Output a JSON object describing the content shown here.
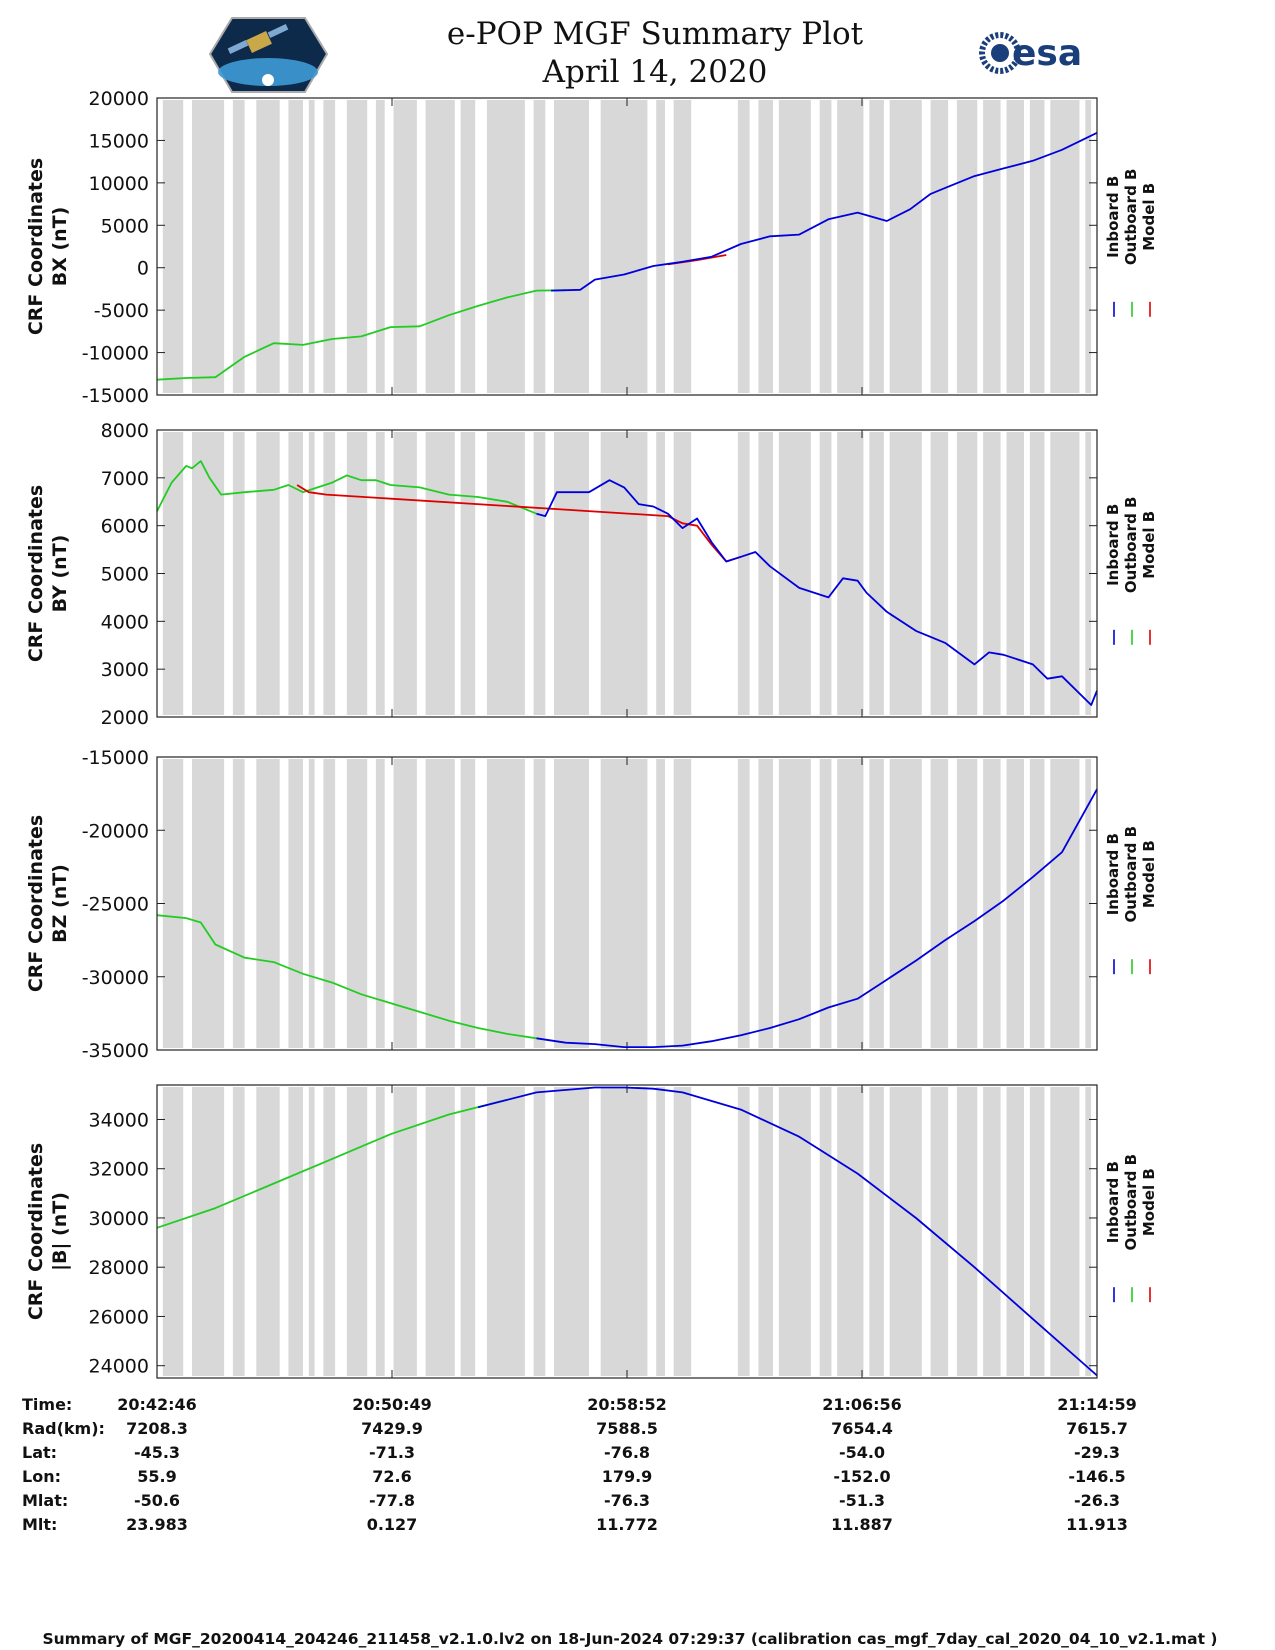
{
  "header": {
    "title": "e-POP MGF Summary Plot",
    "date": "April 14, 2020",
    "left_logo": "cassiope-satellite-logo",
    "right_logo": "esa-logo",
    "right_logo_text": "esa"
  },
  "colors": {
    "inboard": "#0000dd",
    "outboard": "#22cc22",
    "model": "#dd0000",
    "gap_shading": "#d8d8d8"
  },
  "legend": {
    "inboard": "Inboard B",
    "outboard": "Outboard B",
    "model": "Model B"
  },
  "chart_data": [
    {
      "type": "line",
      "ylabel_line1": "CRF Coordinates",
      "ylabel_line2": "BX (nT)",
      "ylim": [
        -15000,
        20000
      ],
      "yticks": [
        20000,
        15000,
        10000,
        5000,
        0,
        -5000,
        -10000,
        -15000
      ],
      "xlim_minutes": [
        0,
        32.2
      ],
      "series": [
        {
          "name": "Outboard B",
          "x": [
            0,
            1,
            2,
            3,
            4,
            5,
            6,
            7,
            8,
            9,
            10,
            11,
            12,
            13,
            14
          ],
          "values": [
            -13200,
            -13000,
            -12900,
            -10500,
            -8900,
            -9100,
            -8400,
            -8100,
            -7000,
            -6900,
            -5600,
            -4500,
            -3500,
            -2700,
            -2650
          ]
        },
        {
          "name": "Inboard B",
          "x": [
            13.5,
            14.5,
            15,
            16,
            17,
            18,
            19,
            20,
            21,
            22,
            23,
            24,
            25,
            25.8,
            26.5,
            27,
            28,
            29,
            30,
            31,
            32.2
          ],
          "values": [
            -2700,
            -2600,
            -1400,
            -800,
            200,
            700,
            1300,
            2800,
            3700,
            3900,
            5700,
            6500,
            5500,
            6900,
            8700,
            9400,
            10800,
            11700,
            12600,
            13900,
            15900
          ]
        },
        {
          "name": "Model B",
          "x": [
            17.5,
            18.5,
            19.5
          ],
          "values": [
            400,
            900,
            1500
          ]
        }
      ],
      "gaps_minutes": [
        [
          0.2,
          0.9
        ],
        [
          1.2,
          2.3
        ],
        [
          2.6,
          3.0
        ],
        [
          3.4,
          4.2
        ],
        [
          4.5,
          5.0
        ],
        [
          5.2,
          5.4
        ],
        [
          5.7,
          6.1
        ],
        [
          6.5,
          7.2
        ],
        [
          7.5,
          7.8
        ],
        [
          8.1,
          8.9
        ],
        [
          9.2,
          10.2
        ],
        [
          10.4,
          10.9
        ],
        [
          11.3,
          12.6
        ],
        [
          12.9,
          13.3
        ],
        [
          13.6,
          14.8
        ],
        [
          15.2,
          16.8
        ],
        [
          17.1,
          17.4
        ],
        [
          17.7,
          18.3
        ],
        [
          19.9,
          20.3
        ],
        [
          20.6,
          21.1
        ],
        [
          21.3,
          22.4
        ],
        [
          22.7,
          23.1
        ],
        [
          23.3,
          24.2
        ],
        [
          24.4,
          24.9
        ],
        [
          25.1,
          26.2
        ],
        [
          26.5,
          27.1
        ],
        [
          27.4,
          28.1
        ],
        [
          28.3,
          28.9
        ],
        [
          29.1,
          29.7
        ],
        [
          29.9,
          30.4
        ],
        [
          30.6,
          31.6
        ],
        [
          31.8,
          32.0
        ]
      ]
    },
    {
      "type": "line",
      "ylabel_line1": "CRF Coordinates",
      "ylabel_line2": "BY (nT)",
      "ylim": [
        2000,
        8000
      ],
      "yticks": [
        8000,
        7000,
        6000,
        5000,
        4000,
        3000,
        2000
      ],
      "xlim_minutes": [
        0,
        32.2
      ],
      "series": [
        {
          "name": "Outboard B",
          "x": [
            0,
            0.5,
            1,
            1.2,
            1.5,
            1.8,
            2.2,
            3,
            4,
            4.5,
            5,
            5.5,
            6,
            6.5,
            7,
            7.5,
            8,
            9,
            10,
            11,
            12,
            13
          ],
          "values": [
            6300,
            6900,
            7250,
            7200,
            7350,
            7000,
            6650,
            6700,
            6750,
            6850,
            6700,
            6800,
            6900,
            7050,
            6950,
            6950,
            6850,
            6800,
            6650,
            6600,
            6500,
            6250
          ]
        },
        {
          "name": "Inboard B",
          "x": [
            13,
            13.3,
            13.7,
            14.2,
            14.8,
            15.5,
            16,
            16.5,
            17,
            17.5,
            18,
            18.5,
            19,
            19.5,
            20,
            20.5,
            21,
            22,
            23,
            23.5,
            24,
            24.3,
            25,
            26,
            27,
            28,
            28.5,
            29,
            30,
            30.5,
            31,
            32,
            32.2
          ],
          "values": [
            6250,
            6200,
            6700,
            6700,
            6700,
            6950,
            6800,
            6450,
            6400,
            6250,
            5950,
            6150,
            5650,
            5250,
            5350,
            5450,
            5150,
            4700,
            4500,
            4900,
            4850,
            4600,
            4200,
            3800,
            3550,
            3100,
            3350,
            3300,
            3100,
            2800,
            2850,
            2250,
            2550
          ]
        },
        {
          "name": "Model B",
          "x": [
            4.8,
            5.2,
            5.8,
            17.5,
            18,
            18.5,
            19,
            19.5,
            20
          ],
          "values": [
            6850,
            6700,
            6650,
            6200,
            6050,
            6000,
            5600,
            5250,
            5350
          ]
        }
      ],
      "gaps_minutes": [
        [
          0.2,
          0.9
        ],
        [
          1.2,
          2.3
        ],
        [
          2.6,
          3.0
        ],
        [
          3.4,
          4.2
        ],
        [
          4.5,
          5.0
        ],
        [
          5.2,
          5.4
        ],
        [
          5.7,
          6.1
        ],
        [
          6.5,
          7.2
        ],
        [
          7.5,
          7.8
        ],
        [
          8.1,
          8.9
        ],
        [
          9.2,
          10.2
        ],
        [
          10.4,
          10.9
        ],
        [
          11.3,
          12.6
        ],
        [
          12.9,
          13.3
        ],
        [
          13.6,
          14.8
        ],
        [
          15.2,
          16.8
        ],
        [
          17.1,
          17.4
        ],
        [
          17.7,
          18.3
        ],
        [
          19.9,
          20.3
        ],
        [
          20.6,
          21.1
        ],
        [
          21.3,
          22.4
        ],
        [
          22.7,
          23.1
        ],
        [
          23.3,
          24.2
        ],
        [
          24.4,
          24.9
        ],
        [
          25.1,
          26.2
        ],
        [
          26.5,
          27.1
        ],
        [
          27.4,
          28.1
        ],
        [
          28.3,
          28.9
        ],
        [
          29.1,
          29.7
        ],
        [
          29.9,
          30.4
        ],
        [
          30.6,
          31.6
        ],
        [
          31.8,
          32.0
        ]
      ]
    },
    {
      "type": "line",
      "ylabel_line1": "CRF Coordinates",
      "ylabel_line2": "BZ (nT)",
      "ylim": [
        -35000,
        -15000
      ],
      "yticks": [
        -15000,
        -20000,
        -25000,
        -30000,
        -35000
      ],
      "xlim_minutes": [
        0,
        32.2
      ],
      "series": [
        {
          "name": "Outboard B",
          "x": [
            0,
            1,
            1.5,
            2,
            3,
            4,
            5,
            6,
            7,
            8,
            9,
            10,
            11,
            12,
            13
          ],
          "values": [
            -25800,
            -26000,
            -26300,
            -27800,
            -28700,
            -29000,
            -29800,
            -30400,
            -31200,
            -31800,
            -32400,
            -33000,
            -33500,
            -33900,
            -34200
          ]
        },
        {
          "name": "Inboard B",
          "x": [
            13,
            14,
            15,
            16,
            17,
            18,
            19,
            20,
            21,
            22,
            23,
            24,
            25,
            26,
            27,
            28,
            29,
            30,
            31,
            32.2
          ],
          "values": [
            -34200,
            -34500,
            -34600,
            -34800,
            -34800,
            -34700,
            -34400,
            -34000,
            -33500,
            -32900,
            -32100,
            -31500,
            -30200,
            -28900,
            -27500,
            -26200,
            -24800,
            -23200,
            -21500,
            -17200
          ]
        }
      ],
      "gaps_minutes": [
        [
          0.2,
          0.9
        ],
        [
          1.2,
          2.3
        ],
        [
          2.6,
          3.0
        ],
        [
          3.4,
          4.2
        ],
        [
          4.5,
          5.0
        ],
        [
          5.2,
          5.4
        ],
        [
          5.7,
          6.1
        ],
        [
          6.5,
          7.2
        ],
        [
          7.5,
          7.8
        ],
        [
          8.1,
          8.9
        ],
        [
          9.2,
          10.2
        ],
        [
          10.4,
          10.9
        ],
        [
          11.3,
          12.6
        ],
        [
          12.9,
          13.3
        ],
        [
          13.6,
          14.8
        ],
        [
          15.2,
          16.8
        ],
        [
          17.1,
          17.4
        ],
        [
          17.7,
          18.3
        ],
        [
          19.9,
          20.3
        ],
        [
          20.6,
          21.1
        ],
        [
          21.3,
          22.4
        ],
        [
          22.7,
          23.1
        ],
        [
          23.3,
          24.2
        ],
        [
          24.4,
          24.9
        ],
        [
          25.1,
          26.2
        ],
        [
          26.5,
          27.1
        ],
        [
          27.4,
          28.1
        ],
        [
          28.3,
          28.9
        ],
        [
          29.1,
          29.7
        ],
        [
          29.9,
          30.4
        ],
        [
          30.6,
          31.6
        ],
        [
          31.8,
          32.0
        ]
      ]
    },
    {
      "type": "line",
      "ylabel_line1": "CRF Coordinates",
      "ylabel_line2": "|B| (nT)",
      "ylim": [
        23500,
        35400
      ],
      "yticks": [
        34000,
        32000,
        30000,
        28000,
        26000,
        24000
      ],
      "xlim_minutes": [
        0,
        32.2
      ],
      "series": [
        {
          "name": "Outboard B",
          "x": [
            0,
            2,
            4,
            6,
            8,
            10,
            12
          ],
          "values": [
            29600,
            30400,
            31400,
            32400,
            33400,
            34200,
            34800
          ]
        },
        {
          "name": "Inboard B",
          "x": [
            11,
            13,
            15,
            16,
            17,
            18,
            20,
            22,
            24,
            26,
            28,
            30,
            32.2
          ],
          "values": [
            34500,
            35100,
            35300,
            35300,
            35250,
            35100,
            34400,
            33300,
            31800,
            30000,
            28000,
            25900,
            23600
          ]
        }
      ],
      "gaps_minutes": [
        [
          0.2,
          0.9
        ],
        [
          1.2,
          2.3
        ],
        [
          2.6,
          3.0
        ],
        [
          3.4,
          4.2
        ],
        [
          4.5,
          5.0
        ],
        [
          5.2,
          5.4
        ],
        [
          5.7,
          6.1
        ],
        [
          6.5,
          7.2
        ],
        [
          7.5,
          7.8
        ],
        [
          8.1,
          8.9
        ],
        [
          9.2,
          10.2
        ],
        [
          10.4,
          10.9
        ],
        [
          11.3,
          12.6
        ],
        [
          12.9,
          13.3
        ],
        [
          13.6,
          14.8
        ],
        [
          15.2,
          16.8
        ],
        [
          17.1,
          17.4
        ],
        [
          17.7,
          18.3
        ],
        [
          19.9,
          20.3
        ],
        [
          20.6,
          21.1
        ],
        [
          21.3,
          22.4
        ],
        [
          22.7,
          23.1
        ],
        [
          23.3,
          24.2
        ],
        [
          24.4,
          24.9
        ],
        [
          25.1,
          26.2
        ],
        [
          26.5,
          27.1
        ],
        [
          27.4,
          28.1
        ],
        [
          28.3,
          28.9
        ],
        [
          29.1,
          29.7
        ],
        [
          29.9,
          30.4
        ],
        [
          30.6,
          31.6
        ],
        [
          31.8,
          32.0
        ]
      ]
    }
  ],
  "ephemeris": {
    "row_labels": [
      "Time:",
      "Rad(km):",
      "Lat:",
      "Lon:",
      "Mlat:",
      "Mlt:"
    ],
    "columns": [
      {
        "minute": 0,
        "values": [
          "20:42:46",
          "7208.3",
          "-45.3",
          "55.9",
          "-50.6",
          "23.983"
        ]
      },
      {
        "minute": 8.05,
        "values": [
          "20:50:49",
          "7429.9",
          "-71.3",
          "72.6",
          "-77.8",
          "0.127"
        ]
      },
      {
        "minute": 16.1,
        "values": [
          "20:58:52",
          "7588.5",
          "-76.8",
          "179.9",
          "-76.3",
          "11.772"
        ]
      },
      {
        "minute": 24.15,
        "values": [
          "21:06:56",
          "7654.4",
          "-54.0",
          "-152.0",
          "-51.3",
          "11.887"
        ]
      },
      {
        "minute": 32.2,
        "values": [
          "21:14:59",
          "7615.7",
          "-29.3",
          "-146.5",
          "-26.3",
          "11.913"
        ]
      }
    ]
  },
  "footer": "Summary of MGF_20200414_204246_211458_v2.1.0.lv2 on 18-Jun-2024 07:29:37 (calibration cas_mgf_7day_cal_2020_04_10_v2.1.mat )"
}
